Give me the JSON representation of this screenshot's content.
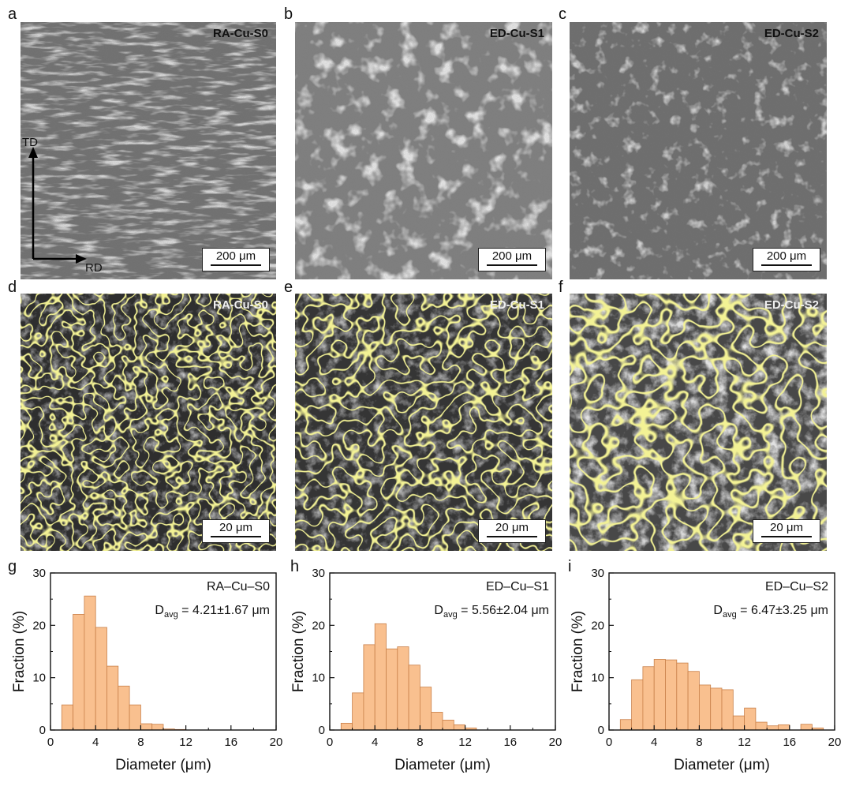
{
  "panels": {
    "a": {
      "label": "a",
      "sample": "RA-Cu-S0",
      "scale": "200 μm"
    },
    "b": {
      "label": "b",
      "sample": "ED-Cu-S1",
      "scale": "200 μm"
    },
    "c": {
      "label": "c",
      "sample": "ED-Cu-S2",
      "scale": "200 μm"
    },
    "d": {
      "label": "d",
      "sample": "RA-Cu-S0",
      "scale": "20 μm"
    },
    "e": {
      "label": "e",
      "sample": "ED-Cu-S1",
      "scale": "20 μm"
    },
    "f": {
      "label": "f",
      "sample": "ED-Cu-S2",
      "scale": "20 μm"
    },
    "g": {
      "label": "g"
    },
    "h": {
      "label": "h"
    },
    "i": {
      "label": "i"
    }
  },
  "axes_arrows": {
    "td": "TD",
    "rd": "RD"
  },
  "colors": {
    "bar_fill": "#f9c08f",
    "bar_stroke": "#c9804a",
    "grain_boundary": "#e4e24a",
    "sem_gray": "#7a7a7a"
  },
  "chart_data": [
    {
      "type": "bar",
      "panel": "g",
      "annotation_sample": "RA–Cu–S0",
      "annotation_davg_main": "D",
      "annotation_davg_sub": "avg",
      "annotation_davg_value": " = 4.21±1.67 μm",
      "xlabel": "Diameter (μm)",
      "ylabel": "Fraction (%)",
      "xlim": [
        0,
        20
      ],
      "ylim": [
        0,
        30
      ],
      "xticks": [
        "0",
        "4",
        "8",
        "12",
        "16",
        "20"
      ],
      "yticks": [
        "0",
        "10",
        "20",
        "30"
      ],
      "bin_width": 1,
      "bin_starts": [
        1,
        2,
        3,
        4,
        5,
        6,
        7,
        8,
        9,
        10,
        11,
        12,
        13,
        14,
        15,
        16,
        17,
        18,
        19
      ],
      "values": [
        4.8,
        22.1,
        25.6,
        19.6,
        12.2,
        8.4,
        4.8,
        1.2,
        1.1,
        0.2,
        0.1,
        0,
        0,
        0,
        0,
        0,
        0,
        0,
        0
      ]
    },
    {
      "type": "bar",
      "panel": "h",
      "annotation_sample": "ED–Cu–S1",
      "annotation_davg_main": "D",
      "annotation_davg_sub": "avg",
      "annotation_davg_value": " = 5.56±2.04 μm",
      "xlabel": "Diameter (μm)",
      "ylabel": "Fraction (%)",
      "xlim": [
        0,
        20
      ],
      "ylim": [
        0,
        30
      ],
      "xticks": [
        "0",
        "4",
        "8",
        "12",
        "16",
        "20"
      ],
      "yticks": [
        "0",
        "10",
        "20",
        "30"
      ],
      "bin_width": 1,
      "bin_starts": [
        1,
        2,
        3,
        4,
        5,
        6,
        7,
        8,
        9,
        10,
        11,
        12,
        13,
        14,
        15,
        16,
        17,
        18,
        19
      ],
      "values": [
        1.3,
        7.1,
        16.3,
        20.3,
        15.5,
        15.9,
        12.4,
        8.2,
        3.4,
        1.9,
        1.0,
        0.4,
        0,
        0,
        0,
        0,
        0,
        0,
        0
      ]
    },
    {
      "type": "bar",
      "panel": "i",
      "annotation_sample": "ED–Cu–S2",
      "annotation_davg_main": "D",
      "annotation_davg_sub": "avg",
      "annotation_davg_value": " = 6.47±3.25 μm",
      "xlabel": "Diameter (μm)",
      "ylabel": "Fraction (%)",
      "xlim": [
        0,
        20
      ],
      "ylim": [
        0,
        30
      ],
      "xticks": [
        "0",
        "4",
        "8",
        "12",
        "16",
        "20"
      ],
      "yticks": [
        "0",
        "10",
        "20",
        "30"
      ],
      "bin_width": 1,
      "bin_starts": [
        1,
        2,
        3,
        4,
        5,
        6,
        7,
        8,
        9,
        10,
        11,
        12,
        13,
        14,
        15,
        16,
        17,
        18,
        19
      ],
      "values": [
        2.0,
        9.6,
        12.1,
        13.5,
        13.4,
        12.8,
        11.2,
        8.6,
        8.0,
        7.7,
        2.7,
        4.2,
        1.5,
        0.8,
        1.0,
        0,
        1.1,
        0.4,
        0
      ]
    }
  ]
}
